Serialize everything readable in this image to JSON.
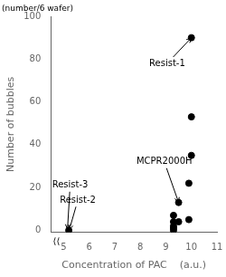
{
  "chart_data": {
    "type": "scatter",
    "xlabel": "Concentration of PAC    (a.u.)",
    "ylabel": "Number of bubbles",
    "ylabel2": "(number/6 wafer)",
    "x": [
      5.2,
      9.3,
      9.3,
      9.3,
      9.3,
      9.3,
      9.5,
      9.5,
      9.9,
      9.9,
      10.0,
      10.0,
      10.0
    ],
    "values": [
      0,
      0,
      1,
      2,
      4,
      7,
      13,
      4,
      5,
      22,
      35,
      53,
      90
    ],
    "color": "#000000",
    "xlim": [
      4.5,
      11
    ],
    "ylim": [
      -1,
      100
    ],
    "xticks": [
      5,
      6,
      7,
      8,
      9,
      10,
      11
    ],
    "yticks": [
      0,
      20,
      40,
      60,
      80,
      100
    ],
    "grid": false,
    "annotations": [
      {
        "text": "⟨⟨",
        "xytext": [
          4.72,
          -3.5
        ]
      },
      {
        "text": "Resist-1",
        "xy": [
          10.0,
          90
        ],
        "xytext": [
          8.35,
          78
        ]
      },
      {
        "text": "MCPR2000H",
        "xy": [
          9.5,
          13
        ],
        "xytext": [
          7.85,
          32
        ]
      },
      {
        "text": "Resist-3",
        "xy": [
          5.15,
          0.5
        ],
        "xytext": [
          4.55,
          21
        ]
      },
      {
        "text": "Resist-2",
        "xy": [
          5.22,
          0.2
        ],
        "xytext": [
          4.85,
          14
        ]
      }
    ]
  }
}
